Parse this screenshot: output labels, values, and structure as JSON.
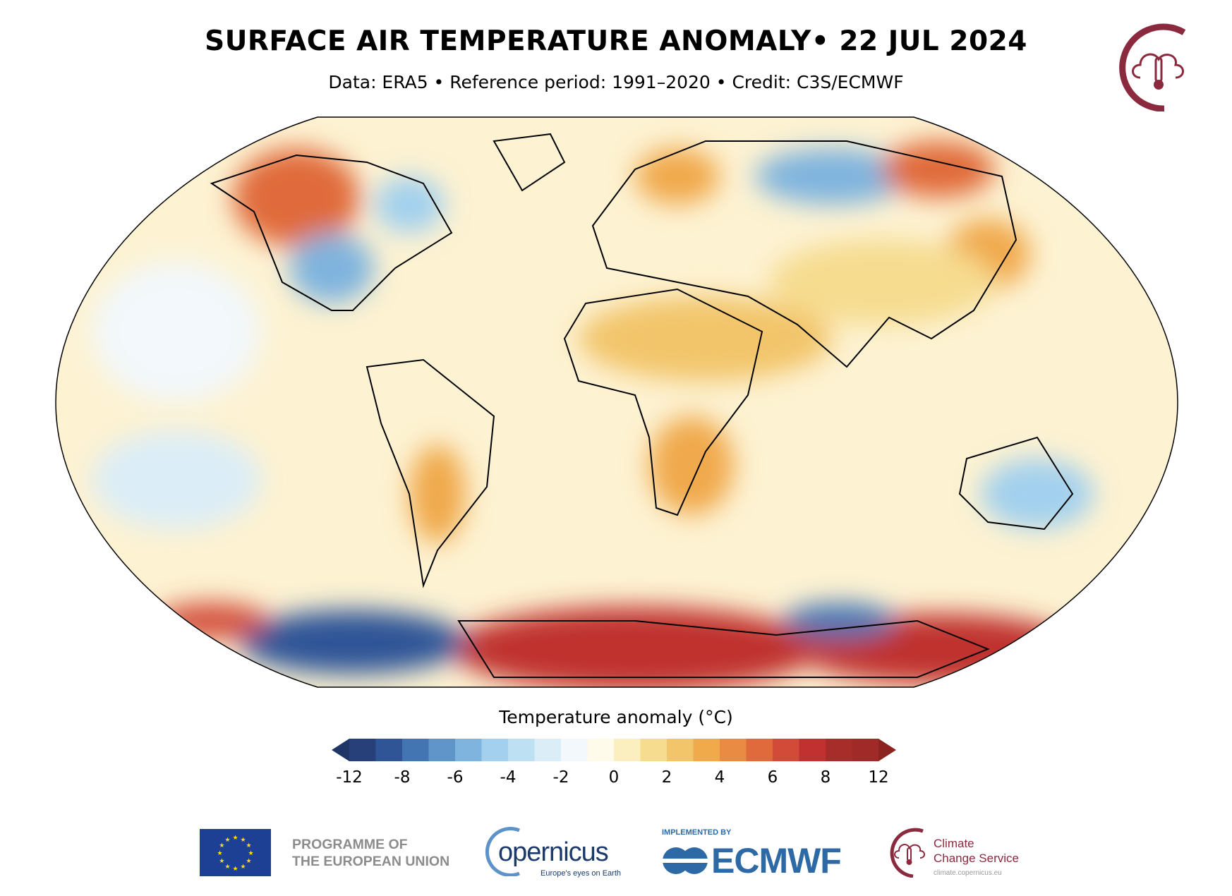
{
  "header": {
    "title": "SURFACE AIR TEMPERATURE ANOMALY• 22 JUL 2024",
    "subtitle": "Data: ERA5 • Reference period: 1991–2020 • Credit: C3S/ECMWF"
  },
  "colorbar": {
    "title": "Temperature anomaly (°C)",
    "labels": [
      "-12",
      "-8",
      "-6",
      "-4",
      "-2",
      "0",
      "2",
      "4",
      "6",
      "8",
      "12"
    ],
    "under_color": "#1f3566",
    "over_color": "#8b2421",
    "colors": [
      "#27407a",
      "#2f5597",
      "#4475b3",
      "#5f95c9",
      "#7fb4de",
      "#a2d0ee",
      "#bde0f3",
      "#dbedf7",
      "#f2f8fb",
      "#fefbea",
      "#fbefc0",
      "#f6dc8f",
      "#f2c56b",
      "#f0a94b",
      "#e98b42",
      "#e06a3b",
      "#d24b38",
      "#c0312f",
      "#a62d2a",
      "#a02a27"
    ]
  },
  "footer": {
    "eu_line1": "PROGRAMME OF",
    "eu_line2": "THE EUROPEAN UNION",
    "copernicus": "opernicus",
    "copernicus_tagline": "Europe's eyes on Earth",
    "implemented_by": "IMPLEMENTED BY",
    "ecmwf": "ECMWF",
    "c3s_line1": "Climate",
    "c3s_line2": "Change Service",
    "c3s_url": "climate.copernicus.eu"
  }
}
